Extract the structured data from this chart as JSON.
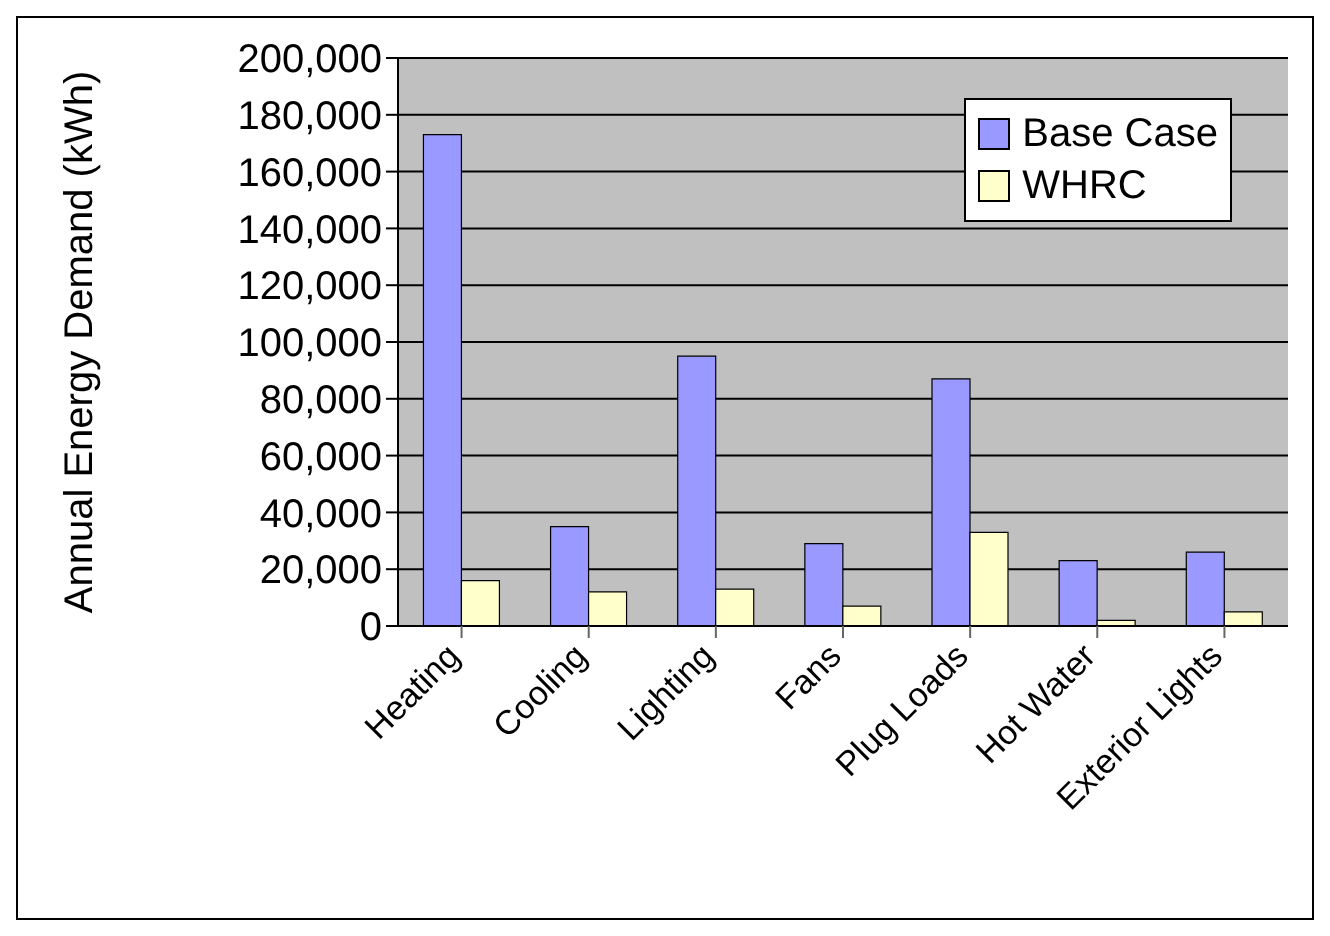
{
  "chart_data": {
    "type": "bar",
    "ylabel": "Annual Energy Demand (kWh)",
    "categories": [
      "Heating",
      "Cooling",
      "Lighting",
      "Fans",
      "Plug Loads",
      "Hot Water",
      "Exterior Lights"
    ],
    "series": [
      {
        "name": "Base Case",
        "color": "#9999ff",
        "values": [
          173000,
          35000,
          95000,
          29000,
          87000,
          23000,
          26000
        ]
      },
      {
        "name": "WHRC",
        "color": "#ffffcc",
        "values": [
          16000,
          12000,
          13000,
          7000,
          33000,
          2000,
          5000
        ]
      }
    ],
    "ylim": [
      0,
      200000
    ],
    "yticks": [
      0,
      {
        "value": 20000,
        "label": "20,000"
      },
      {
        "value": 40000,
        "label": "40,000"
      },
      {
        "value": 60000,
        "label": "60,000"
      },
      {
        "value": 80000,
        "label": "80,000"
      },
      {
        "value": 100000,
        "label": "100,000"
      },
      {
        "value": 120000,
        "label": "120,000"
      },
      {
        "value": 140000,
        "label": "140,000"
      },
      {
        "value": 160000,
        "label": "160,000"
      },
      {
        "value": 180000,
        "label": "180,000"
      },
      {
        "value": 200000,
        "label": "200,000"
      }
    ],
    "grid": "y",
    "legend": "top right"
  }
}
